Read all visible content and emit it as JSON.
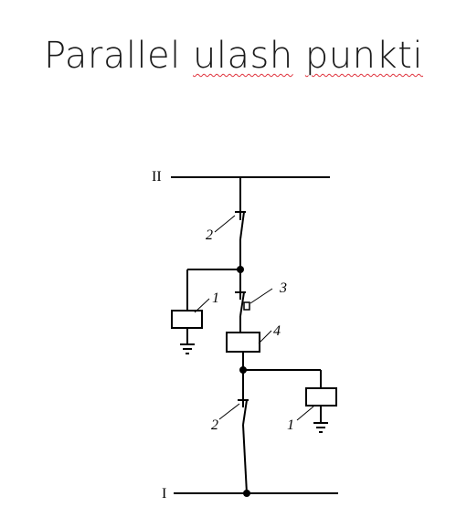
{
  "title": {
    "word1": "Parallel",
    "word2": "ulash",
    "word3": "punkti"
  },
  "diagram": {
    "busbar_top_label": "II",
    "busbar_bottom_label": "I",
    "labels": {
      "switch_upper": "2",
      "switch_lower": "2",
      "arrester_left": "1",
      "arrester_right": "1",
      "breaker": "3",
      "reactor": "4"
    },
    "colors": {
      "line": "#000000",
      "spellcheck": "#e0323c"
    }
  }
}
